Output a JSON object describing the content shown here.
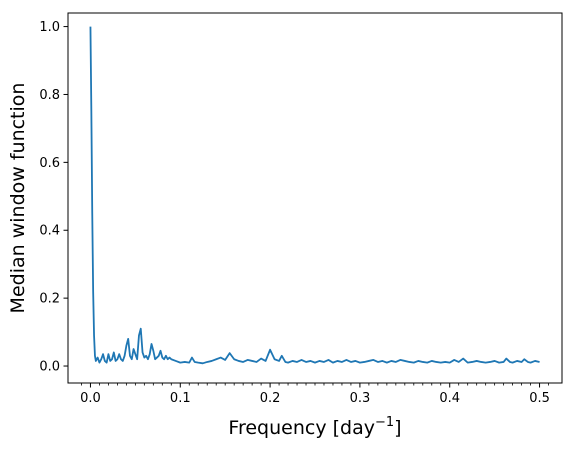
{
  "chart_data": {
    "type": "line",
    "title": "",
    "xlabel": "Frequency [day",
    "xlabel_exponent": "−1",
    "xlabel_close": "]",
    "ylabel": "Median window function",
    "xlim": [
      -0.025,
      0.525
    ],
    "ylim": [
      -0.05,
      1.04
    ],
    "xticks": [
      0.0,
      0.1,
      0.2,
      0.3,
      0.4,
      0.5
    ],
    "xtick_labels": [
      "0.0",
      "0.1",
      "0.2",
      "0.3",
      "0.4",
      "0.5"
    ],
    "yticks": [
      0.0,
      0.2,
      0.4,
      0.6,
      0.8,
      1.0
    ],
    "ytick_labels": [
      "0.0",
      "0.2",
      "0.4",
      "0.6",
      "0.8",
      "1.0"
    ],
    "grid": false,
    "line_color": "#1f77b4",
    "series": [
      {
        "name": "",
        "x": [
          0.0,
          0.001,
          0.002,
          0.003,
          0.004,
          0.005,
          0.006,
          0.008,
          0.01,
          0.012,
          0.014,
          0.016,
          0.018,
          0.02,
          0.022,
          0.024,
          0.026,
          0.028,
          0.03,
          0.032,
          0.034,
          0.036,
          0.038,
          0.04,
          0.042,
          0.044,
          0.046,
          0.048,
          0.05,
          0.052,
          0.054,
          0.056,
          0.058,
          0.06,
          0.062,
          0.064,
          0.066,
          0.068,
          0.07,
          0.072,
          0.074,
          0.076,
          0.078,
          0.08,
          0.082,
          0.084,
          0.086,
          0.088,
          0.09,
          0.095,
          0.1,
          0.105,
          0.11,
          0.113,
          0.116,
          0.12,
          0.125,
          0.13,
          0.135,
          0.14,
          0.145,
          0.15,
          0.155,
          0.16,
          0.165,
          0.17,
          0.175,
          0.18,
          0.185,
          0.19,
          0.195,
          0.2,
          0.205,
          0.21,
          0.213,
          0.217,
          0.22,
          0.225,
          0.23,
          0.235,
          0.24,
          0.245,
          0.25,
          0.255,
          0.26,
          0.265,
          0.27,
          0.275,
          0.28,
          0.285,
          0.29,
          0.295,
          0.3,
          0.305,
          0.31,
          0.315,
          0.32,
          0.325,
          0.33,
          0.335,
          0.34,
          0.345,
          0.35,
          0.355,
          0.36,
          0.365,
          0.37,
          0.375,
          0.38,
          0.385,
          0.39,
          0.395,
          0.4,
          0.405,
          0.41,
          0.415,
          0.42,
          0.425,
          0.43,
          0.435,
          0.44,
          0.445,
          0.45,
          0.455,
          0.46,
          0.463,
          0.467,
          0.47,
          0.475,
          0.48,
          0.483,
          0.487,
          0.49,
          0.495,
          0.5
        ],
        "y": [
          1.0,
          0.75,
          0.45,
          0.22,
          0.09,
          0.03,
          0.015,
          0.025,
          0.01,
          0.02,
          0.035,
          0.015,
          0.01,
          0.035,
          0.015,
          0.02,
          0.04,
          0.015,
          0.02,
          0.035,
          0.02,
          0.015,
          0.03,
          0.06,
          0.08,
          0.03,
          0.02,
          0.05,
          0.035,
          0.02,
          0.09,
          0.11,
          0.04,
          0.025,
          0.03,
          0.02,
          0.035,
          0.065,
          0.045,
          0.02,
          0.025,
          0.03,
          0.045,
          0.025,
          0.02,
          0.03,
          0.02,
          0.025,
          0.02,
          0.015,
          0.01,
          0.012,
          0.01,
          0.025,
          0.012,
          0.01,
          0.008,
          0.012,
          0.015,
          0.02,
          0.025,
          0.018,
          0.038,
          0.02,
          0.015,
          0.012,
          0.018,
          0.015,
          0.012,
          0.022,
          0.015,
          0.048,
          0.02,
          0.015,
          0.03,
          0.012,
          0.01,
          0.015,
          0.012,
          0.018,
          0.012,
          0.015,
          0.01,
          0.015,
          0.012,
          0.018,
          0.01,
          0.015,
          0.012,
          0.018,
          0.012,
          0.015,
          0.01,
          0.012,
          0.015,
          0.018,
          0.012,
          0.015,
          0.01,
          0.015,
          0.012,
          0.018,
          0.015,
          0.012,
          0.01,
          0.015,
          0.012,
          0.01,
          0.015,
          0.012,
          0.01,
          0.012,
          0.01,
          0.018,
          0.012,
          0.022,
          0.01,
          0.012,
          0.015,
          0.012,
          0.01,
          0.012,
          0.015,
          0.01,
          0.012,
          0.022,
          0.012,
          0.01,
          0.015,
          0.012,
          0.02,
          0.012,
          0.01,
          0.015,
          0.012
        ]
      }
    ]
  }
}
